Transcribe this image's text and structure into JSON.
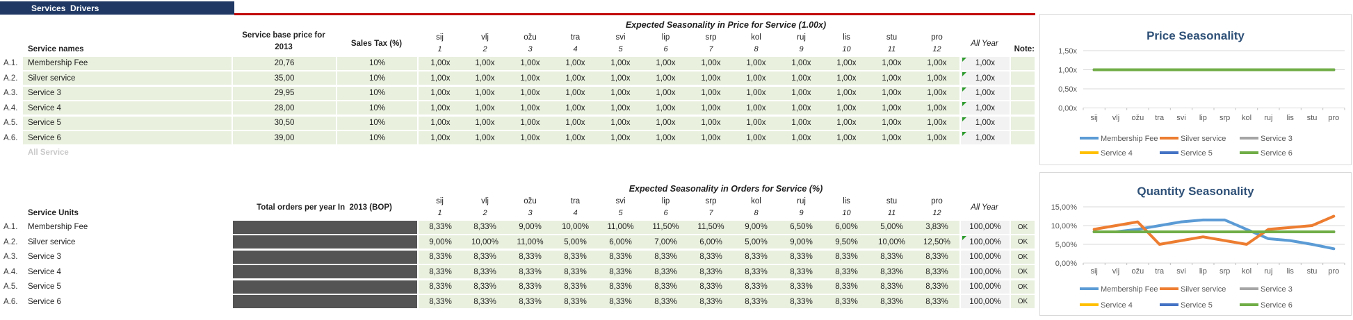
{
  "header": {
    "title": "Services  Drivers"
  },
  "colors": {
    "navy": "#1F3864",
    "red_rule": "#C00000",
    "cell_green": "#E9F0DE",
    "cell_gray": "#F2F2F2",
    "hidden_box": "#545454",
    "flag_green": "#2E9B2E",
    "chart_title": "#2E5077",
    "series": [
      "#5B9BD5",
      "#ED7D31",
      "#A5A5A5",
      "#FFC000",
      "#4472C4",
      "#70AD47"
    ]
  },
  "months": [
    {
      "abbr": "sij",
      "num": "1"
    },
    {
      "abbr": "vlj",
      "num": "2"
    },
    {
      "abbr": "ožu",
      "num": "3"
    },
    {
      "abbr": "tra",
      "num": "4"
    },
    {
      "abbr": "svi",
      "num": "5"
    },
    {
      "abbr": "lip",
      "num": "6"
    },
    {
      "abbr": "srp",
      "num": "7"
    },
    {
      "abbr": "kol",
      "num": "8"
    },
    {
      "abbr": "ruj",
      "num": "9"
    },
    {
      "abbr": "lis",
      "num": "10"
    },
    {
      "abbr": "stu",
      "num": "11"
    },
    {
      "abbr": "pro",
      "num": "12"
    }
  ],
  "price_table": {
    "title": "Expected Seasonality in Price for Service (1.00x)",
    "name_header": "Service names",
    "price_header_line1": "Service base price for",
    "price_header_line2": "2013",
    "tax_header": "Sales Tax (%)",
    "all_year_header": "All Year",
    "note_header": "Note:",
    "footer_label": "All Service",
    "rows": [
      {
        "id": "A.1.",
        "name": "Membership Fee",
        "price": "20,76",
        "tax": "10%",
        "monthly": [
          "1,00x",
          "1,00x",
          "1,00x",
          "1,00x",
          "1,00x",
          "1,00x",
          "1,00x",
          "1,00x",
          "1,00x",
          "1,00x",
          "1,00x",
          "1,00x"
        ],
        "all_year": "1,00x",
        "flagged": true,
        "note": ""
      },
      {
        "id": "A.2.",
        "name": "Silver service",
        "price": "35,00",
        "tax": "10%",
        "monthly": [
          "1,00x",
          "1,00x",
          "1,00x",
          "1,00x",
          "1,00x",
          "1,00x",
          "1,00x",
          "1,00x",
          "1,00x",
          "1,00x",
          "1,00x",
          "1,00x"
        ],
        "all_year": "1,00x",
        "flagged": true,
        "note": ""
      },
      {
        "id": "A.3.",
        "name": "Service 3",
        "price": "29,95",
        "tax": "10%",
        "monthly": [
          "1,00x",
          "1,00x",
          "1,00x",
          "1,00x",
          "1,00x",
          "1,00x",
          "1,00x",
          "1,00x",
          "1,00x",
          "1,00x",
          "1,00x",
          "1,00x"
        ],
        "all_year": "1,00x",
        "flagged": true,
        "note": ""
      },
      {
        "id": "A.4.",
        "name": "Service 4",
        "price": "28,00",
        "tax": "10%",
        "monthly": [
          "1,00x",
          "1,00x",
          "1,00x",
          "1,00x",
          "1,00x",
          "1,00x",
          "1,00x",
          "1,00x",
          "1,00x",
          "1,00x",
          "1,00x",
          "1,00x"
        ],
        "all_year": "1,00x",
        "flagged": true,
        "note": ""
      },
      {
        "id": "A.5.",
        "name": "Service 5",
        "price": "30,50",
        "tax": "10%",
        "monthly": [
          "1,00x",
          "1,00x",
          "1,00x",
          "1,00x",
          "1,00x",
          "1,00x",
          "1,00x",
          "1,00x",
          "1,00x",
          "1,00x",
          "1,00x",
          "1,00x"
        ],
        "all_year": "1,00x",
        "flagged": true,
        "note": ""
      },
      {
        "id": "A.6.",
        "name": "Service 6",
        "price": "39,00",
        "tax": "10%",
        "monthly": [
          "1,00x",
          "1,00x",
          "1,00x",
          "1,00x",
          "1,00x",
          "1,00x",
          "1,00x",
          "1,00x",
          "1,00x",
          "1,00x",
          "1,00x",
          "1,00x"
        ],
        "all_year": "1,00x",
        "flagged": true,
        "note": ""
      }
    ]
  },
  "orders_table": {
    "title": "Expected Seasonality in Orders for Service (%)",
    "name_header": "Service Units",
    "total_header": "Total orders per year In  2013 (BOP)",
    "all_year_header": "All Year",
    "rows": [
      {
        "id": "A.1.",
        "name": "Membership Fee",
        "total_hidden": true,
        "monthly": [
          "8,33%",
          "8,33%",
          "9,00%",
          "10,00%",
          "11,00%",
          "11,50%",
          "11,50%",
          "9,00%",
          "6,50%",
          "6,00%",
          "5,00%",
          "3,83%"
        ],
        "all_year": "100,00%",
        "flagged": false,
        "note": "OK"
      },
      {
        "id": "A.2.",
        "name": "Silver service",
        "total_hidden": true,
        "monthly": [
          "9,00%",
          "10,00%",
          "11,00%",
          "5,00%",
          "6,00%",
          "7,00%",
          "6,00%",
          "5,00%",
          "9,00%",
          "9,50%",
          "10,00%",
          "12,50%"
        ],
        "all_year": "100,00%",
        "flagged": true,
        "note": "OK"
      },
      {
        "id": "A.3.",
        "name": "Service 3",
        "total_hidden": true,
        "monthly": [
          "8,33%",
          "8,33%",
          "8,33%",
          "8,33%",
          "8,33%",
          "8,33%",
          "8,33%",
          "8,33%",
          "8,33%",
          "8,33%",
          "8,33%",
          "8,33%"
        ],
        "all_year": "100,00%",
        "flagged": false,
        "note": "OK"
      },
      {
        "id": "A.4.",
        "name": "Service 4",
        "total_hidden": true,
        "monthly": [
          "8,33%",
          "8,33%",
          "8,33%",
          "8,33%",
          "8,33%",
          "8,33%",
          "8,33%",
          "8,33%",
          "8,33%",
          "8,33%",
          "8,33%",
          "8,33%"
        ],
        "all_year": "100,00%",
        "flagged": false,
        "note": "OK"
      },
      {
        "id": "A.5.",
        "name": "Service 5",
        "total_hidden": true,
        "monthly": [
          "8,33%",
          "8,33%",
          "8,33%",
          "8,33%",
          "8,33%",
          "8,33%",
          "8,33%",
          "8,33%",
          "8,33%",
          "8,33%",
          "8,33%",
          "8,33%"
        ],
        "all_year": "100,00%",
        "flagged": false,
        "note": "OK"
      },
      {
        "id": "A.6.",
        "name": "Service 6",
        "total_hidden": true,
        "monthly": [
          "8,33%",
          "8,33%",
          "8,33%",
          "8,33%",
          "8,33%",
          "8,33%",
          "8,33%",
          "8,33%",
          "8,33%",
          "8,33%",
          "8,33%",
          "8,33%"
        ],
        "all_year": "100,00%",
        "flagged": false,
        "note": "OK"
      }
    ]
  },
  "chart_data": [
    {
      "type": "line",
      "title": "Price Seasonality",
      "categories": [
        "sij",
        "vlj",
        "ožu",
        "tra",
        "svi",
        "lip",
        "srp",
        "kol",
        "ruj",
        "lis",
        "stu",
        "pro"
      ],
      "ylim": [
        0,
        1.5
      ],
      "grid": true,
      "legend_position": "bottom",
      "y_ticks": [
        {
          "value": 0,
          "label": "0,00x"
        },
        {
          "value": 0.5,
          "label": "0,50x"
        },
        {
          "value": 1,
          "label": "1,00x"
        },
        {
          "value": 1.5,
          "label": "1,50x"
        }
      ],
      "series": [
        {
          "name": "Membership Fee",
          "color": "#5B9BD5",
          "values": [
            1,
            1,
            1,
            1,
            1,
            1,
            1,
            1,
            1,
            1,
            1,
            1
          ]
        },
        {
          "name": "Silver service",
          "color": "#ED7D31",
          "values": [
            1,
            1,
            1,
            1,
            1,
            1,
            1,
            1,
            1,
            1,
            1,
            1
          ]
        },
        {
          "name": "Service 3",
          "color": "#A5A5A5",
          "values": [
            1,
            1,
            1,
            1,
            1,
            1,
            1,
            1,
            1,
            1,
            1,
            1
          ]
        },
        {
          "name": "Service 4",
          "color": "#FFC000",
          "values": [
            1,
            1,
            1,
            1,
            1,
            1,
            1,
            1,
            1,
            1,
            1,
            1
          ]
        },
        {
          "name": "Service 5",
          "color": "#4472C4",
          "values": [
            1,
            1,
            1,
            1,
            1,
            1,
            1,
            1,
            1,
            1,
            1,
            1
          ]
        },
        {
          "name": "Service 6",
          "color": "#70AD47",
          "values": [
            1,
            1,
            1,
            1,
            1,
            1,
            1,
            1,
            1,
            1,
            1,
            1
          ]
        }
      ]
    },
    {
      "type": "line",
      "title": "Quantity  Seasonality",
      "categories": [
        "sij",
        "vlj",
        "ožu",
        "tra",
        "svi",
        "lip",
        "srp",
        "kol",
        "ruj",
        "lis",
        "stu",
        "pro"
      ],
      "ylim": [
        0,
        15
      ],
      "grid": true,
      "legend_position": "bottom",
      "y_ticks": [
        {
          "value": 0,
          "label": "0,00%"
        },
        {
          "value": 5,
          "label": "5,00%"
        },
        {
          "value": 10,
          "label": "10,00%"
        },
        {
          "value": 15,
          "label": "15,00%"
        }
      ],
      "series": [
        {
          "name": "Membership Fee",
          "color": "#5B9BD5",
          "values": [
            8.33,
            8.33,
            9,
            10,
            11,
            11.5,
            11.5,
            9,
            6.5,
            6,
            5,
            3.83
          ]
        },
        {
          "name": "Silver service",
          "color": "#ED7D31",
          "values": [
            9,
            10,
            11,
            5,
            6,
            7,
            6,
            5,
            9,
            9.5,
            10,
            12.5
          ]
        },
        {
          "name": "Service 3",
          "color": "#A5A5A5",
          "values": [
            8.33,
            8.33,
            8.33,
            8.33,
            8.33,
            8.33,
            8.33,
            8.33,
            8.33,
            8.33,
            8.33,
            8.33
          ]
        },
        {
          "name": "Service 4",
          "color": "#FFC000",
          "values": [
            8.33,
            8.33,
            8.33,
            8.33,
            8.33,
            8.33,
            8.33,
            8.33,
            8.33,
            8.33,
            8.33,
            8.33
          ]
        },
        {
          "name": "Service 5",
          "color": "#4472C4",
          "values": [
            8.33,
            8.33,
            8.33,
            8.33,
            8.33,
            8.33,
            8.33,
            8.33,
            8.33,
            8.33,
            8.33,
            8.33
          ]
        },
        {
          "name": "Service 6",
          "color": "#70AD47",
          "values": [
            8.33,
            8.33,
            8.33,
            8.33,
            8.33,
            8.33,
            8.33,
            8.33,
            8.33,
            8.33,
            8.33,
            8.33
          ]
        }
      ]
    }
  ]
}
